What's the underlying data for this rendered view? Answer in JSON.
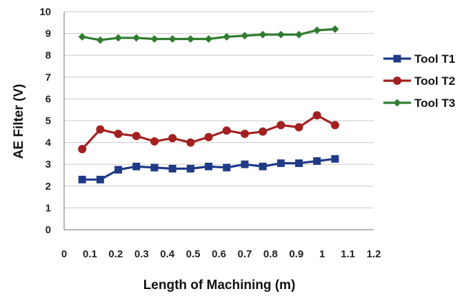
{
  "chart_data": {
    "type": "line",
    "title": "",
    "xlabel": "Length of Machining (m)",
    "ylabel": "AE Filter (V)",
    "xlim": [
      0,
      1.2
    ],
    "ylim": [
      0,
      10
    ],
    "x_ticks": [
      "0",
      "0.1",
      "0.2",
      "0.3",
      "0.4",
      "0.5",
      "0.6",
      "0.7",
      "0.8",
      "0.9",
      "1",
      "1.1",
      "1.2"
    ],
    "y_ticks": [
      "0",
      "1",
      "2",
      "3",
      "4",
      "5",
      "6",
      "7",
      "8",
      "9",
      "10"
    ],
    "grid": "horizontal",
    "legend_position": "right",
    "x": [
      0.07,
      0.14,
      0.21,
      0.28,
      0.35,
      0.42,
      0.49,
      0.56,
      0.63,
      0.7,
      0.77,
      0.84,
      0.91,
      0.98,
      1.05
    ],
    "series": [
      {
        "name": "Tool T1",
        "color": "#1f3b87",
        "marker": "square",
        "values": [
          2.3,
          2.3,
          2.75,
          2.9,
          2.85,
          2.8,
          2.8,
          2.9,
          2.85,
          3.0,
          2.9,
          3.05,
          3.05,
          3.15,
          3.25
        ]
      },
      {
        "name": "Tool T2",
        "color": "#a32020",
        "marker": "circle",
        "values": [
          3.7,
          4.6,
          4.4,
          4.3,
          4.05,
          4.2,
          4.0,
          4.25,
          4.55,
          4.4,
          4.5,
          4.8,
          4.7,
          5.25,
          4.8
        ]
      },
      {
        "name": "Tool T3",
        "color": "#2e7d2e",
        "marker": "diamond",
        "values": [
          8.85,
          8.7,
          8.8,
          8.8,
          8.75,
          8.75,
          8.75,
          8.75,
          8.85,
          8.9,
          8.95,
          8.95,
          8.95,
          9.15,
          9.2
        ]
      }
    ]
  }
}
